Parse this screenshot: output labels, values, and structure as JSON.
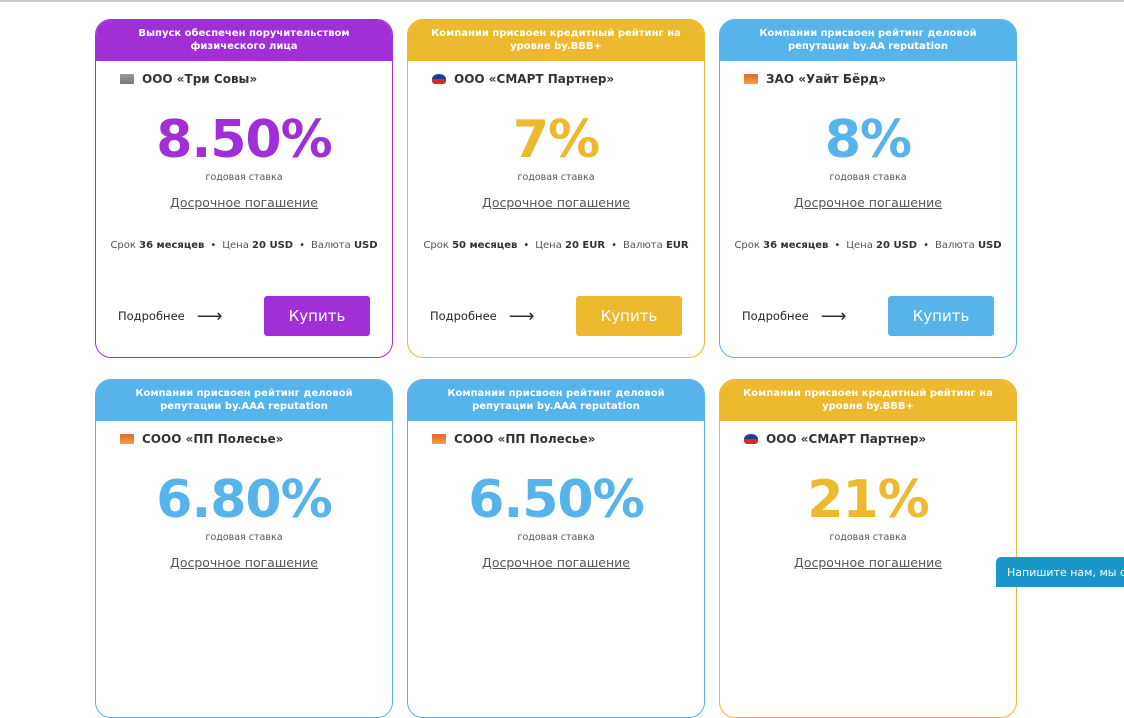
{
  "colors": {
    "purple": "#a12fd6",
    "yellow": "#ecb92f",
    "blue": "#56b4ea"
  },
  "labels": {
    "rate_caption": "годовая ставка",
    "early": "Досрочное погашение",
    "more": "Подробнее",
    "buy": "Купить",
    "term": "Срок",
    "price": "Цена",
    "currency": "Валюта"
  },
  "cards": [
    {
      "header": "Выпуск обеспечен поручительством физического лица",
      "company": "ООО «Три Совы»",
      "rate": "8.50%",
      "term": "36 месяцев",
      "price": "20 USD",
      "currency": "USD",
      "theme": "purple"
    },
    {
      "header": "Компании присвоен кредитный рейтинг на уровне by.BBB+",
      "company": "ООО «СМАРТ Партнер»",
      "rate": "7%",
      "term": "50 месяцев",
      "price": "20 EUR",
      "currency": "EUR",
      "theme": "yellow"
    },
    {
      "header": "Компании присвоен рейтинг деловой репутации by.AA reputation",
      "company": "ЗАО «Уайт Бёрд»",
      "rate": "8%",
      "term": "36 месяцев",
      "price": "20 USD",
      "currency": "USD",
      "theme": "blue"
    },
    {
      "header": "Компании присвоен рейтинг деловой репутации by.AAA reputation",
      "company": "СООО «ПП Полесье»",
      "rate": "6.80%",
      "theme": "blue"
    },
    {
      "header": "Компании присвоен рейтинг деловой репутации by.AAA reputation",
      "company": "СООО «ПП Полесье»",
      "rate": "6.50%",
      "theme": "blue"
    },
    {
      "header": "Компании присвоен кредитный рейтинг на уровне by.BBB+",
      "company": "ООО «СМАРТ Партнер»",
      "rate": "21%",
      "theme": "yellow"
    }
  ],
  "chat": {
    "label": "Напишите нам, мы онлайн!"
  }
}
